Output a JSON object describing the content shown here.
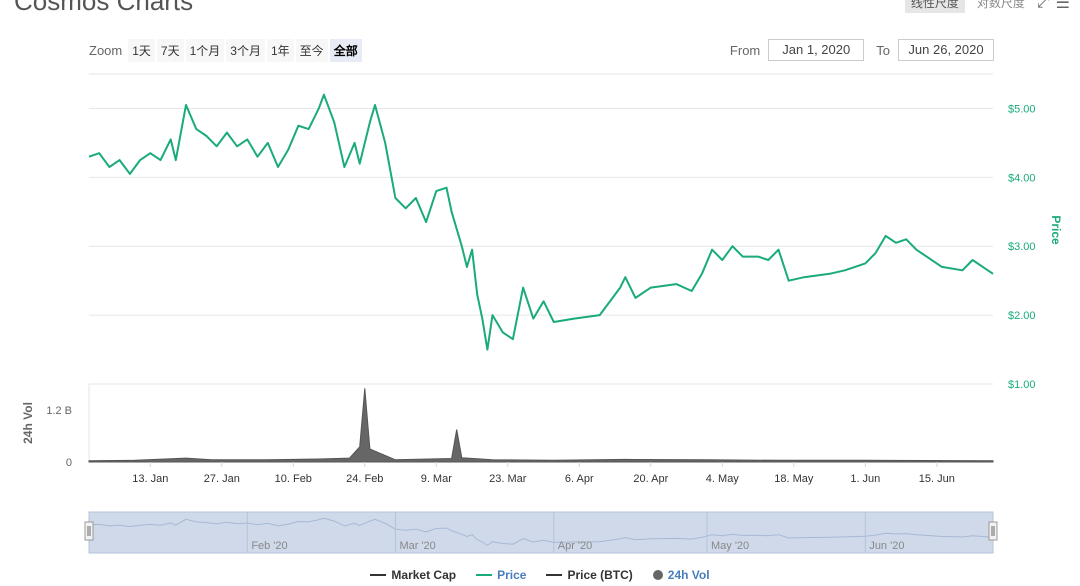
{
  "page": {
    "title": "Cosmos Charts"
  },
  "top_buttons": {
    "linear_label": "线性尺度",
    "log_label": "对数尺度",
    "expand_icon": "expand-icon",
    "menu_icon": "menu-icon"
  },
  "zoom": {
    "label": "Zoom",
    "buttons": [
      "1天",
      "7天",
      "1个月",
      "3个月",
      "1年",
      "至今",
      "全部"
    ],
    "selected": "全部"
  },
  "range": {
    "from_label": "From",
    "from_value": "Jan 1, 2020",
    "to_label": "To",
    "to_value": "Jun 26, 2020"
  },
  "navigator": {
    "labels": [
      "Feb '20",
      "Mar '20",
      "Apr '20",
      "May '20",
      "Jun '20"
    ]
  },
  "legend": [
    {
      "name": "Market Cap",
      "color": "#333333",
      "marker": "line"
    },
    {
      "name": "Price",
      "color": "#1aab78",
      "marker": "line"
    },
    {
      "name": "Price (BTC)",
      "color": "#333333",
      "marker": "line"
    },
    {
      "name": "24h Vol",
      "color": "#666666",
      "marker": "dot"
    }
  ],
  "chart_data": {
    "type": "line",
    "x_range": [
      "2020-01-01",
      "2020-06-26"
    ],
    "x_ticks": [
      "13. Jan",
      "27. Jan",
      "10. Feb",
      "24. Feb",
      "9. Mar",
      "23. Mar",
      "6. Apr",
      "20. Apr",
      "4. May",
      "18. May",
      "1. Jun",
      "15. Jun"
    ],
    "price": {
      "axis_title": "Price",
      "ticks": [
        "$1.00",
        "$2.00",
        "$3.00",
        "$4.00",
        "$5.00"
      ],
      "ylim": [
        1,
        5.5
      ],
      "color": "#1aab78",
      "points": [
        [
          "2020-01-01",
          4.3
        ],
        [
          "2020-01-03",
          4.35
        ],
        [
          "2020-01-05",
          4.15
        ],
        [
          "2020-01-07",
          4.25
        ],
        [
          "2020-01-09",
          4.05
        ],
        [
          "2020-01-11",
          4.25
        ],
        [
          "2020-01-13",
          4.35
        ],
        [
          "2020-01-15",
          4.25
        ],
        [
          "2020-01-17",
          4.55
        ],
        [
          "2020-01-18",
          4.25
        ],
        [
          "2020-01-20",
          5.05
        ],
        [
          "2020-01-22",
          4.7
        ],
        [
          "2020-01-24",
          4.6
        ],
        [
          "2020-01-26",
          4.45
        ],
        [
          "2020-01-28",
          4.65
        ],
        [
          "2020-01-30",
          4.45
        ],
        [
          "2020-02-01",
          4.55
        ],
        [
          "2020-02-03",
          4.3
        ],
        [
          "2020-02-05",
          4.5
        ],
        [
          "2020-02-07",
          4.15
        ],
        [
          "2020-02-09",
          4.4
        ],
        [
          "2020-02-11",
          4.75
        ],
        [
          "2020-02-13",
          4.7
        ],
        [
          "2020-02-15",
          5.0
        ],
        [
          "2020-02-16",
          5.2
        ],
        [
          "2020-02-18",
          4.8
        ],
        [
          "2020-02-20",
          4.15
        ],
        [
          "2020-02-22",
          4.5
        ],
        [
          "2020-02-23",
          4.2
        ],
        [
          "2020-02-25",
          4.8
        ],
        [
          "2020-02-26",
          5.05
        ],
        [
          "2020-02-28",
          4.5
        ],
        [
          "2020-03-01",
          3.7
        ],
        [
          "2020-03-03",
          3.55
        ],
        [
          "2020-03-05",
          3.7
        ],
        [
          "2020-03-07",
          3.35
        ],
        [
          "2020-03-09",
          3.8
        ],
        [
          "2020-03-11",
          3.85
        ],
        [
          "2020-03-12",
          3.5
        ],
        [
          "2020-03-14",
          3.0
        ],
        [
          "2020-03-15",
          2.7
        ],
        [
          "2020-03-16",
          2.95
        ],
        [
          "2020-03-17",
          2.3
        ],
        [
          "2020-03-18",
          1.95
        ],
        [
          "2020-03-19",
          1.5
        ],
        [
          "2020-03-20",
          2.0
        ],
        [
          "2020-03-22",
          1.75
        ],
        [
          "2020-03-24",
          1.65
        ],
        [
          "2020-03-26",
          2.4
        ],
        [
          "2020-03-28",
          1.95
        ],
        [
          "2020-03-30",
          2.2
        ],
        [
          "2020-04-01",
          1.9
        ],
        [
          "2020-04-05",
          1.95
        ],
        [
          "2020-04-10",
          2.0
        ],
        [
          "2020-04-14",
          2.4
        ],
        [
          "2020-04-15",
          2.55
        ],
        [
          "2020-04-17",
          2.25
        ],
        [
          "2020-04-20",
          2.4
        ],
        [
          "2020-04-25",
          2.45
        ],
        [
          "2020-04-28",
          2.35
        ],
        [
          "2020-04-30",
          2.6
        ],
        [
          "2020-05-02",
          2.95
        ],
        [
          "2020-05-04",
          2.8
        ],
        [
          "2020-05-06",
          3.0
        ],
        [
          "2020-05-08",
          2.85
        ],
        [
          "2020-05-11",
          2.85
        ],
        [
          "2020-05-13",
          2.8
        ],
        [
          "2020-05-15",
          2.95
        ],
        [
          "2020-05-17",
          2.5
        ],
        [
          "2020-05-20",
          2.55
        ],
        [
          "2020-05-25",
          2.6
        ],
        [
          "2020-05-28",
          2.65
        ],
        [
          "2020-06-01",
          2.75
        ],
        [
          "2020-06-03",
          2.9
        ],
        [
          "2020-06-05",
          3.15
        ],
        [
          "2020-06-07",
          3.05
        ],
        [
          "2020-06-09",
          3.1
        ],
        [
          "2020-06-11",
          2.95
        ],
        [
          "2020-06-13",
          2.85
        ],
        [
          "2020-06-16",
          2.7
        ],
        [
          "2020-06-20",
          2.65
        ],
        [
          "2020-06-22",
          2.8
        ],
        [
          "2020-06-24",
          2.7
        ],
        [
          "2020-06-26",
          2.6
        ]
      ]
    },
    "volume": {
      "axis_title": "24h Vol",
      "ticks": [
        "0",
        "1.2 B"
      ],
      "ylim": [
        0,
        1.8
      ],
      "color": "#666666",
      "unit": "B",
      "points": [
        [
          "2020-01-01",
          0.03
        ],
        [
          "2020-01-10",
          0.04
        ],
        [
          "2020-01-20",
          0.09
        ],
        [
          "2020-01-25",
          0.05
        ],
        [
          "2020-02-05",
          0.05
        ],
        [
          "2020-02-15",
          0.07
        ],
        [
          "2020-02-21",
          0.09
        ],
        [
          "2020-02-23",
          0.35
        ],
        [
          "2020-02-24",
          1.7
        ],
        [
          "2020-02-25",
          0.3
        ],
        [
          "2020-03-01",
          0.05
        ],
        [
          "2020-03-12",
          0.08
        ],
        [
          "2020-03-13",
          0.75
        ],
        [
          "2020-03-14",
          0.1
        ],
        [
          "2020-03-20",
          0.05
        ],
        [
          "2020-04-01",
          0.04
        ],
        [
          "2020-04-15",
          0.06
        ],
        [
          "2020-05-01",
          0.05
        ],
        [
          "2020-05-15",
          0.04
        ],
        [
          "2020-06-01",
          0.04
        ],
        [
          "2020-06-26",
          0.03
        ]
      ]
    }
  }
}
